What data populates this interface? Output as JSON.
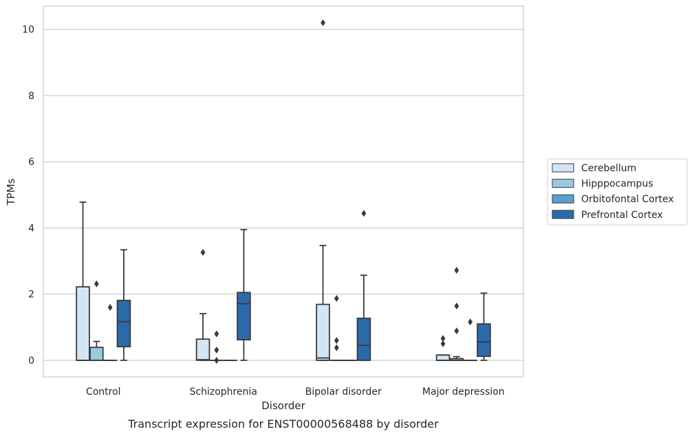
{
  "chart_data": {
    "type": "boxplot",
    "xlabel": "Disorder",
    "ylabel": "TPMs",
    "caption": "Transcript expression for ENST00000568488 by disorder",
    "ylim": [
      -0.5,
      10.7
    ],
    "yticks": [
      0,
      2,
      4,
      6,
      8,
      10
    ],
    "grid": "horizontal",
    "legend_position": "right",
    "categories": [
      "Control",
      "Schizophrenia",
      "Bipolar disorder",
      "Major depression"
    ],
    "series": [
      {
        "name": "Cerebellum",
        "color": "#d3e4f3",
        "boxes": [
          {
            "whisker_low": 0,
            "q1": 0,
            "median": 0,
            "q3": 2.22,
            "whisker_high": 4.78,
            "outliers": []
          },
          {
            "whisker_low": 0,
            "q1": 0,
            "median": 0.02,
            "q3": 0.64,
            "whisker_high": 1.41,
            "outliers": [
              3.26
            ]
          },
          {
            "whisker_low": 0,
            "q1": 0,
            "median": 0.07,
            "q3": 1.69,
            "whisker_high": 3.47,
            "outliers": [
              10.2
            ]
          },
          {
            "whisker_low": 0,
            "q1": 0,
            "median": 0,
            "q3": 0.16,
            "whisker_high": 0.16,
            "outliers": [
              0.5,
              0.66
            ]
          }
        ]
      },
      {
        "name": "Hipppocampus",
        "color": "#9ac8e0",
        "boxes": [
          {
            "whisker_low": 0,
            "q1": 0,
            "median": 0,
            "q3": 0.39,
            "whisker_high": 0.57,
            "outliers": [
              2.31
            ]
          },
          {
            "whisker_low": 0,
            "q1": 0,
            "median": 0,
            "q3": 0,
            "whisker_high": 0,
            "outliers": [
              0,
              0.31,
              0.8
            ]
          },
          {
            "whisker_low": 0,
            "q1": 0,
            "median": 0,
            "q3": 0,
            "whisker_high": 0,
            "outliers": [
              0.38,
              0.6,
              1.87
            ]
          },
          {
            "whisker_low": 0,
            "q1": 0,
            "median": 0,
            "q3": 0.05,
            "whisker_high": 0.11,
            "outliers": [
              0.89,
              1.64,
              2.72
            ]
          }
        ]
      },
      {
        "name": "Orbitofontal Cortex",
        "color": "#5a9fcd",
        "boxes": [
          {
            "whisker_low": 0,
            "q1": 0,
            "median": 0,
            "q3": 0,
            "whisker_high": 0,
            "outliers": [
              1.6
            ]
          },
          {
            "whisker_low": 0,
            "q1": 0,
            "median": 0,
            "q3": 0,
            "whisker_high": 0,
            "outliers": []
          },
          {
            "whisker_low": 0,
            "q1": 0,
            "median": 0,
            "q3": 0,
            "whisker_high": 0,
            "outliers": []
          },
          {
            "whisker_low": 0,
            "q1": 0,
            "median": 0,
            "q3": 0,
            "whisker_high": 0,
            "outliers": [
              1.16
            ]
          }
        ]
      },
      {
        "name": "Prefrontal Cortex",
        "color": "#2b6aaa",
        "boxes": [
          {
            "whisker_low": 0,
            "q1": 0.41,
            "median": 1.17,
            "q3": 1.81,
            "whisker_high": 3.34,
            "outliers": []
          },
          {
            "whisker_low": 0,
            "q1": 0.62,
            "median": 1.71,
            "q3": 2.05,
            "whisker_high": 3.95,
            "outliers": []
          },
          {
            "whisker_low": 0,
            "q1": 0,
            "median": 0.45,
            "q3": 1.27,
            "whisker_high": 2.57,
            "outliers": [
              4.44
            ]
          },
          {
            "whisker_low": 0,
            "q1": 0.12,
            "median": 0.56,
            "q3": 1.1,
            "whisker_high": 2.03,
            "outliers": []
          }
        ]
      }
    ]
  }
}
